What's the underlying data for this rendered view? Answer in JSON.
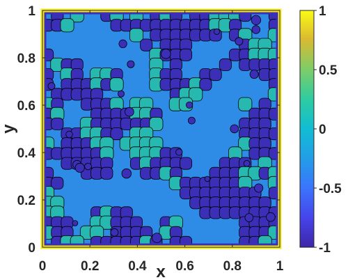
{
  "chart_data": {
    "type": "contour",
    "xlabel": "x",
    "ylabel": "y",
    "xlim": [
      0,
      1
    ],
    "ylim": [
      0,
      1
    ],
    "xticks": [
      "0",
      "0.2",
      "0.4",
      "0.6",
      "0.8",
      "1"
    ],
    "yticks": [
      "0",
      "0.2",
      "0.4",
      "0.6",
      "0.8",
      "1"
    ],
    "colorbar": {
      "range": [
        -1,
        1
      ],
      "ticks": [
        "1",
        "0.5",
        "0",
        "-0.5",
        "-1"
      ],
      "colormap": "parula"
    },
    "field_description_values": {
      "interior_low_value": -0.8,
      "interior_high_value": 0.0,
      "boundary_value": 1.0,
      "contour_lines": "black"
    }
  },
  "colors": {
    "deep": "#3b2fb8",
    "mid": "#2e8ce6",
    "teal": "#27b9b0",
    "edge": "#f9e91f",
    "lines": "#000000"
  }
}
